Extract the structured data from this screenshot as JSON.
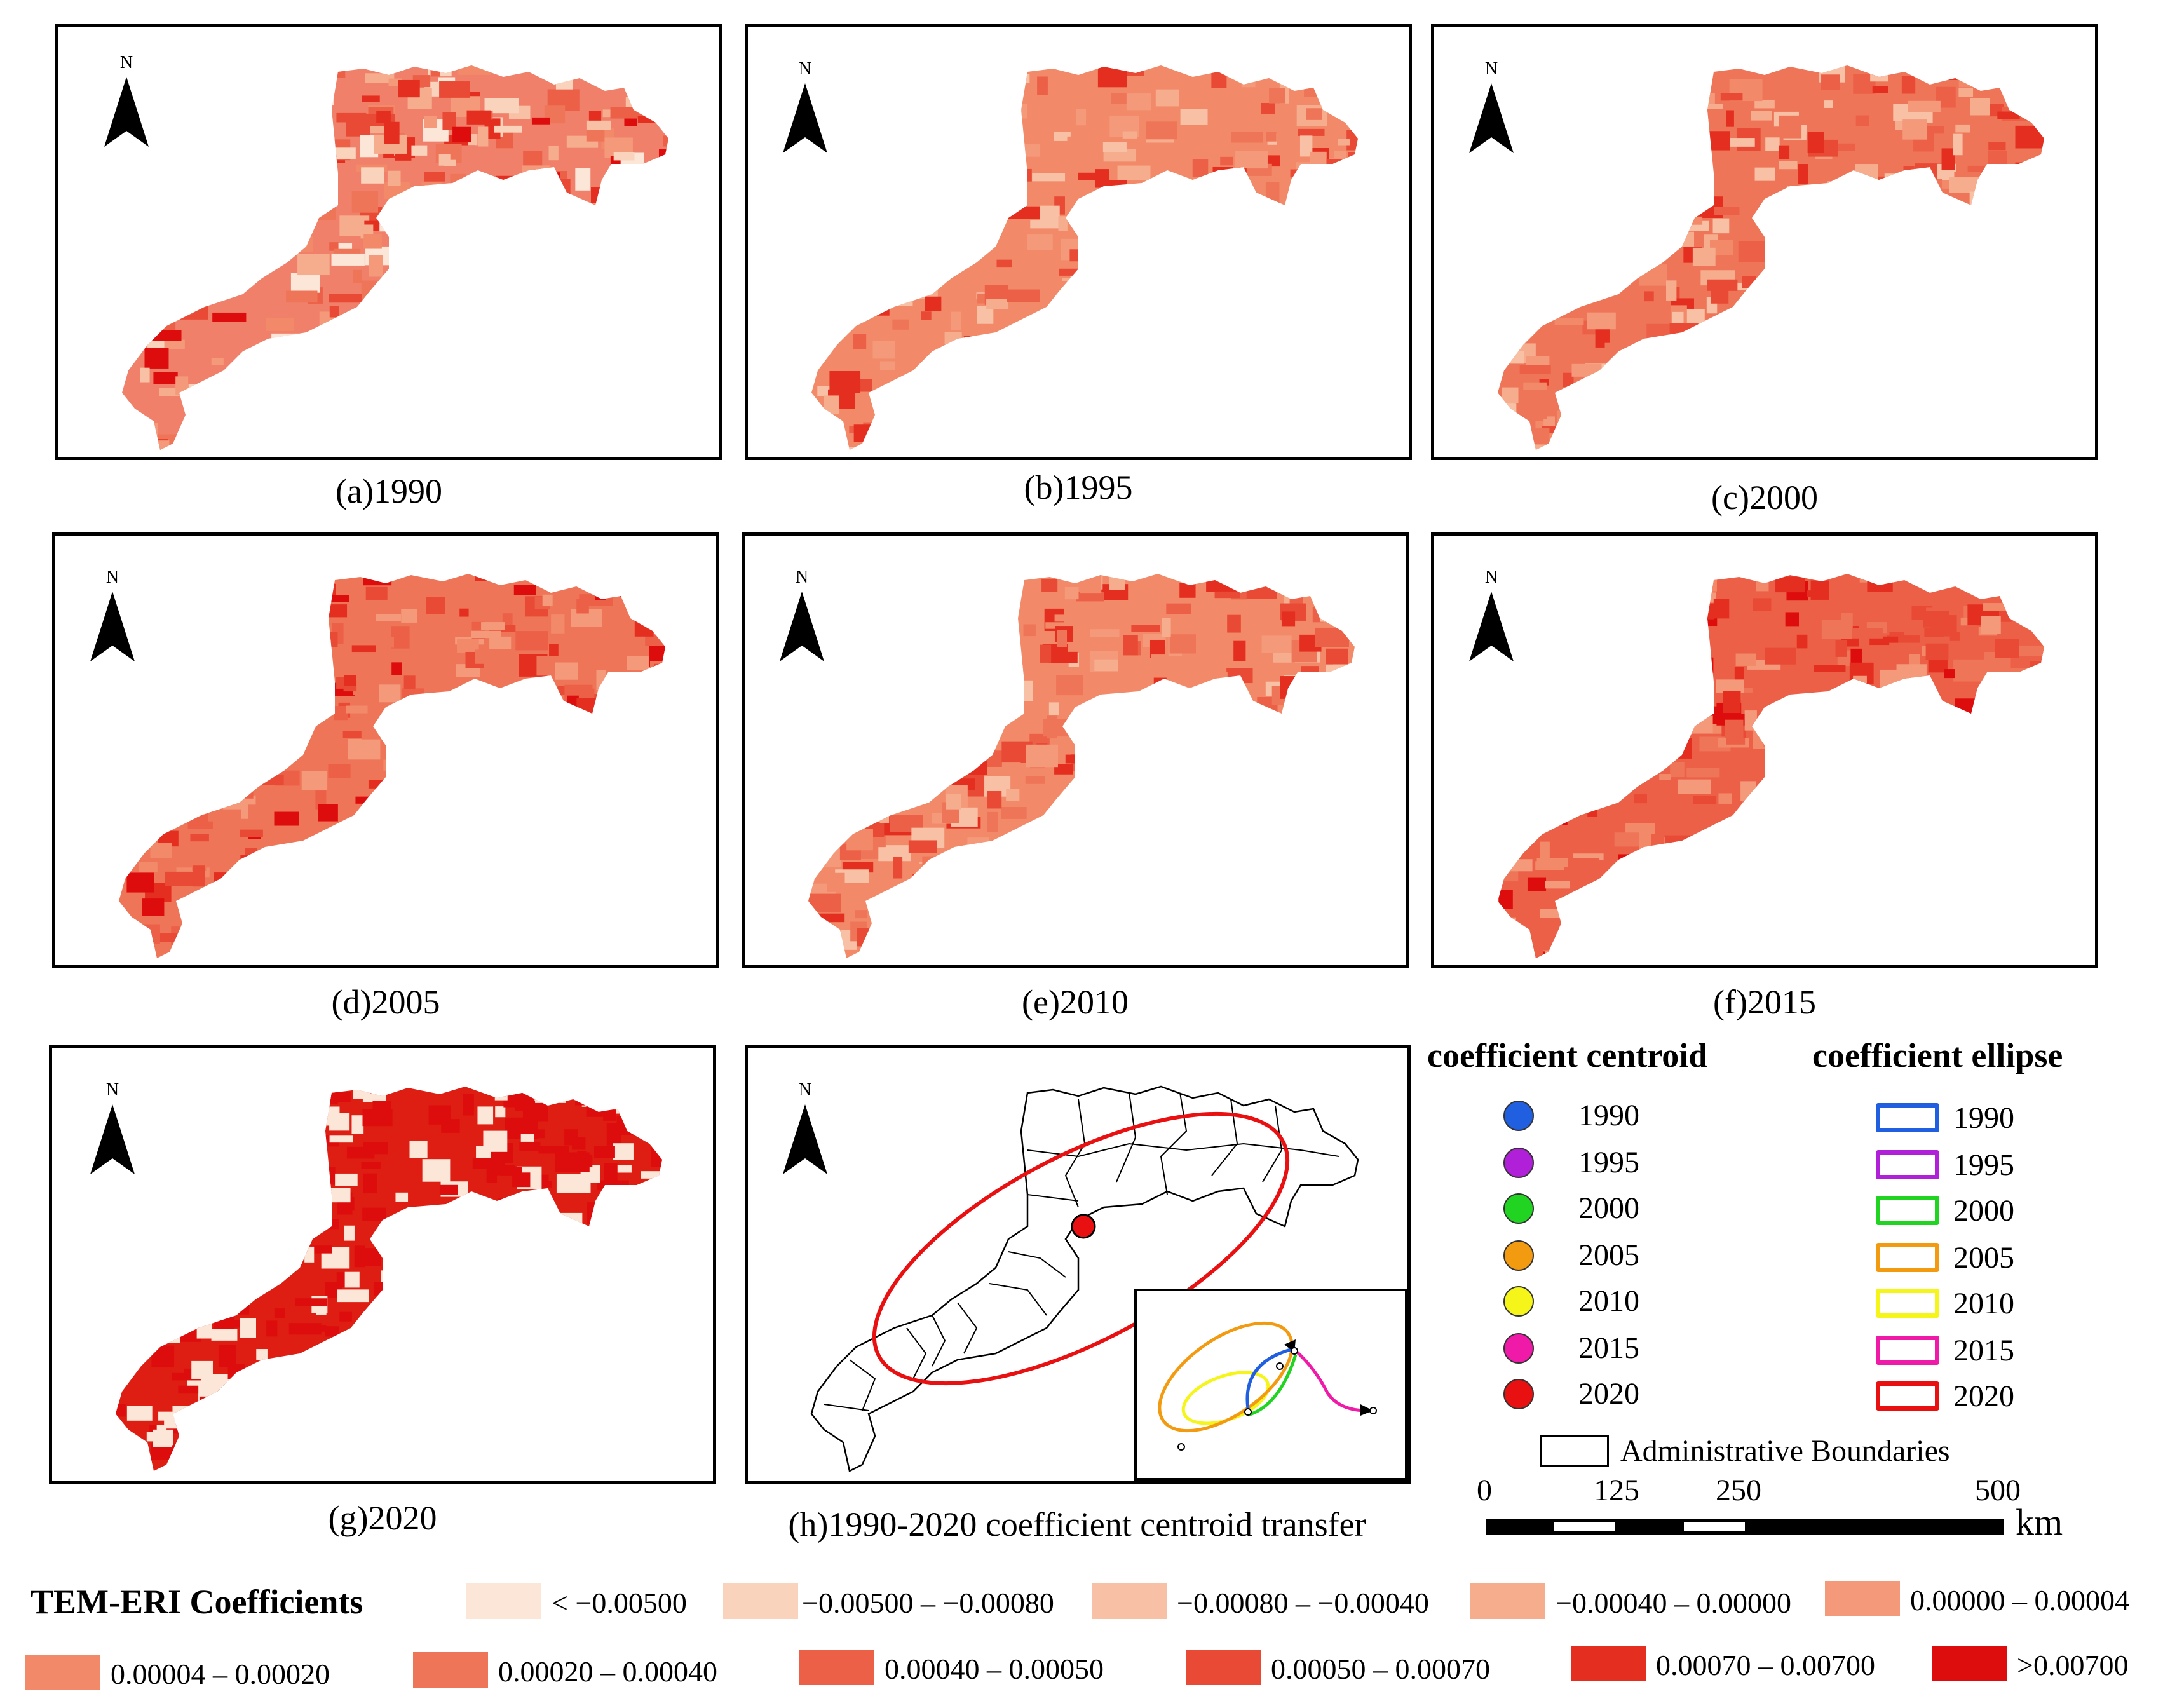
{
  "panels": [
    {
      "caption": "(a)1990"
    },
    {
      "caption": "(b)1995"
    },
    {
      "caption": "(c)2000"
    },
    {
      "caption": "(d)2005"
    },
    {
      "caption": "(e)2010"
    },
    {
      "caption": "(f)2015"
    },
    {
      "caption": "(g)2020"
    },
    {
      "caption": "(h)1990-2020 coefficient centroid transfer"
    }
  ],
  "north_label": "N",
  "centroid_legend": {
    "title": "coefficient  centroid",
    "items": [
      {
        "year": "1990",
        "color": "#1f5fe0"
      },
      {
        "year": "1995",
        "color": "#b020d8"
      },
      {
        "year": "2000",
        "color": "#22d422"
      },
      {
        "year": "2005",
        "color": "#f29a10"
      },
      {
        "year": "2010",
        "color": "#f5f51a"
      },
      {
        "year": "2015",
        "color": "#f01aa8"
      },
      {
        "year": "2020",
        "color": "#e81010"
      }
    ]
  },
  "ellipse_legend": {
    "title": "coefficient ellipse",
    "items": [
      {
        "year": "1990",
        "color": "#1f5fe0"
      },
      {
        "year": "1995",
        "color": "#b020d8"
      },
      {
        "year": "2000",
        "color": "#22d422"
      },
      {
        "year": "2005",
        "color": "#f29a10"
      },
      {
        "year": "2010",
        "color": "#f5f51a"
      },
      {
        "year": "2015",
        "color": "#f01aa8"
      },
      {
        "year": "2020",
        "color": "#e81010"
      }
    ]
  },
  "admin_label": "Administrative Boundaries",
  "scale_bar": {
    "ticks": [
      "0",
      "125",
      "250",
      "500"
    ],
    "unit": "km"
  },
  "coef_legend": {
    "title": "TEM-ERI   Coefficients",
    "classes": [
      {
        "label": "< −0.00500",
        "color": "#fbe6d8"
      },
      {
        "label": "−0.00500 – −0.00080",
        "color": "#fad3bd"
      },
      {
        "label": "−0.00080 – −0.00040",
        "color": "#f8c1a6"
      },
      {
        "label": "−0.00040 – 0.00000",
        "color": "#f6ad8e"
      },
      {
        "label": "0.00000 – 0.00004",
        "color": "#f49a7b"
      },
      {
        "label": "0.00004 – 0.00020",
        "color": "#f28a6a"
      },
      {
        "label": "0.00020 – 0.00040",
        "color": "#ef7558"
      },
      {
        "label": "0.00040 – 0.00050",
        "color": "#ec6048"
      },
      {
        "label": "0.00050 – 0.00070",
        "color": "#e84a35"
      },
      {
        "label": "0.00070 – 0.00700",
        "color": "#e42e20"
      },
      {
        "label": ">0.00700",
        "color": "#de0d0d"
      }
    ]
  }
}
